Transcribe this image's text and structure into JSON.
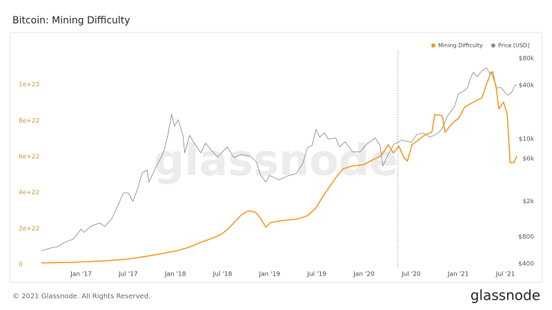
{
  "chart_data": {
    "type": "line",
    "title": "Bitcoin: Mining Difficulty",
    "legend": "top-right",
    "grid": false,
    "xlim": [
      2016.55,
      2021.65
    ],
    "xticks": [
      {
        "value": 2017.0,
        "label": "Jan '17"
      },
      {
        "value": 2017.5,
        "label": "Jul '17"
      },
      {
        "value": 2018.0,
        "label": "Jan '18"
      },
      {
        "value": 2018.5,
        "label": "Jul '18"
      },
      {
        "value": 2019.0,
        "label": "Jan '19"
      },
      {
        "value": 2019.5,
        "label": "Jul '19"
      },
      {
        "value": 2020.0,
        "label": "Jan '20"
      },
      {
        "value": 2020.5,
        "label": "Jul '20"
      },
      {
        "value": 2021.0,
        "label": "Jan '21"
      },
      {
        "value": 2021.5,
        "label": "Jul '21"
      }
    ],
    "ylim": [
      0,
      1.2e+23
    ],
    "yticks": [
      0,
      {
        "value": 2e+22,
        "label": "2e+22"
      },
      {
        "value": 4e+22,
        "label": "4e+22"
      },
      {
        "value": 6e+22,
        "label": "6e+22"
      },
      {
        "value": 8e+22,
        "label": "8e+22"
      },
      {
        "value": 1e+23,
        "label": "1e+23"
      }
    ],
    "y2lim": [
      393,
      102400
    ],
    "y2log": true,
    "y2ticks": [
      {
        "value": 400,
        "label": "$400"
      },
      {
        "value": 800,
        "label": "$800"
      },
      {
        "value": 2000,
        "label": "$2k"
      },
      {
        "value": 6000,
        "label": "$6k"
      },
      {
        "value": 10000,
        "label": "$10k"
      },
      {
        "value": 40000,
        "label": "$40k"
      },
      {
        "value": 80000,
        "label": "$80k"
      }
    ],
    "vlines": [
      2020.36
    ],
    "series": [
      {
        "name": "Mining Difficulty",
        "color": "#f7931a",
        "x": [
          2016.58,
          2016.88,
          2017.24,
          2017.49,
          2017.68,
          2017.83,
          2018.0,
          2018.12,
          2018.27,
          2018.41,
          2018.49,
          2018.56,
          2018.63,
          2018.7,
          2018.77,
          2018.85,
          2018.91,
          2018.96,
          2019.01,
          2019.14,
          2019.29,
          2019.4,
          2019.49,
          2019.56,
          2019.63,
          2019.71,
          2019.78,
          2019.87,
          2020.0,
          2020.09,
          2020.18,
          2020.26,
          2020.31,
          2020.37,
          2020.42,
          2020.46,
          2020.51,
          2020.57,
          2020.64,
          2020.72,
          2020.75,
          2020.83,
          2020.86,
          2020.94,
          2021.0,
          2021.07,
          2021.16,
          2021.25,
          2021.3,
          2021.35,
          2021.4,
          2021.43,
          2021.48,
          2021.52,
          2021.55,
          2021.59,
          2021.62
        ],
        "values": [
          9e+20,
          1.2e+21,
          2e+21,
          3e+21,
          4.5e+21,
          5.8e+21,
          7.5e+21,
          9.2e+21,
          1.23e+22,
          1.5e+22,
          1.69e+22,
          1.99e+22,
          2.38e+22,
          2.76e+22,
          2.99e+22,
          2.91e+22,
          2.53e+22,
          2.07e+22,
          2.34e+22,
          2.45e+22,
          2.53e+22,
          2.72e+22,
          3.14e+22,
          3.75e+22,
          4.29e+22,
          4.9e+22,
          5.33e+22,
          5.48e+22,
          5.56e+22,
          5.82e+22,
          6.05e+22,
          6.67e+22,
          6.21e+22,
          6.59e+22,
          5.98e+22,
          5.75e+22,
          6.67e+22,
          6.9e+22,
          7.2e+22,
          7.36e+22,
          8.35e+22,
          8.28e+22,
          7.36e+22,
          7.89e+22,
          8.12e+22,
          8.77e+22,
          9.04e+22,
          9.27e+22,
          1.004e+23,
          1.073e+23,
          9.96e+22,
          8.66e+22,
          9.04e+22,
          8.35e+22,
          5.67e+22,
          5.67e+22,
          6.05e+22
        ]
      },
      {
        "name": "Price [USD]",
        "color": "#8a8a8a",
        "axis": "y2",
        "x": [
          2016.58,
          2016.67,
          2016.75,
          2016.83,
          2016.92,
          2017.0,
          2017.03,
          2017.1,
          2017.2,
          2017.25,
          2017.33,
          2017.4,
          2017.45,
          2017.5,
          2017.55,
          2017.6,
          2017.65,
          2017.7,
          2017.72,
          2017.8,
          2017.85,
          2017.88,
          2017.92,
          2017.96,
          2017.99,
          2018.03,
          2018.08,
          2018.1,
          2018.15,
          2018.2,
          2018.27,
          2018.32,
          2018.38,
          2018.45,
          2018.55,
          2018.62,
          2018.7,
          2018.8,
          2018.86,
          2018.9,
          2018.96,
          2019.0,
          2019.1,
          2019.2,
          2019.28,
          2019.35,
          2019.4,
          2019.45,
          2019.49,
          2019.53,
          2019.58,
          2019.62,
          2019.7,
          2019.74,
          2019.8,
          2019.88,
          2019.96,
          2020.03,
          2020.12,
          2020.17,
          2020.2,
          2020.25,
          2020.32,
          2020.4,
          2020.5,
          2020.56,
          2020.63,
          2020.7,
          2020.78,
          2020.83,
          2020.89,
          2020.96,
          2021.0,
          2021.05,
          2021.1,
          2021.13,
          2021.16,
          2021.2,
          2021.25,
          2021.3,
          2021.34,
          2021.37,
          2021.4,
          2021.45,
          2021.5,
          2021.53,
          2021.57,
          2021.6,
          2021.62
        ],
        "values": [
          560,
          600,
          620,
          700,
          760,
          980,
          900,
          1050,
          1150,
          1050,
          1300,
          1900,
          2500,
          2500,
          2000,
          2800,
          4200,
          4500,
          3300,
          5000,
          6300,
          7400,
          11000,
          19000,
          14000,
          16500,
          11000,
          7000,
          11000,
          9000,
          7000,
          9000,
          7500,
          6300,
          8200,
          6200,
          6700,
          6400,
          5500,
          4000,
          3300,
          3900,
          3500,
          3900,
          4100,
          5300,
          8000,
          8500,
          12800,
          10500,
          11800,
          10000,
          10300,
          8200,
          9300,
          7200,
          7200,
          8800,
          10300,
          8500,
          5000,
          6500,
          8800,
          9700,
          9200,
          11200,
          11700,
          10500,
          11500,
          13200,
          18500,
          23000,
          32000,
          34000,
          38000,
          48000,
          56000,
          50000,
          58000,
          63000,
          53000,
          57000,
          37000,
          38000,
          33000,
          31000,
          34000,
          40000,
          41000
        ]
      }
    ]
  },
  "watermark": "glassnode",
  "footer": {
    "copyright": "© 2021 Glassnode. All Rights Reserved.",
    "logo": "glassnode"
  }
}
